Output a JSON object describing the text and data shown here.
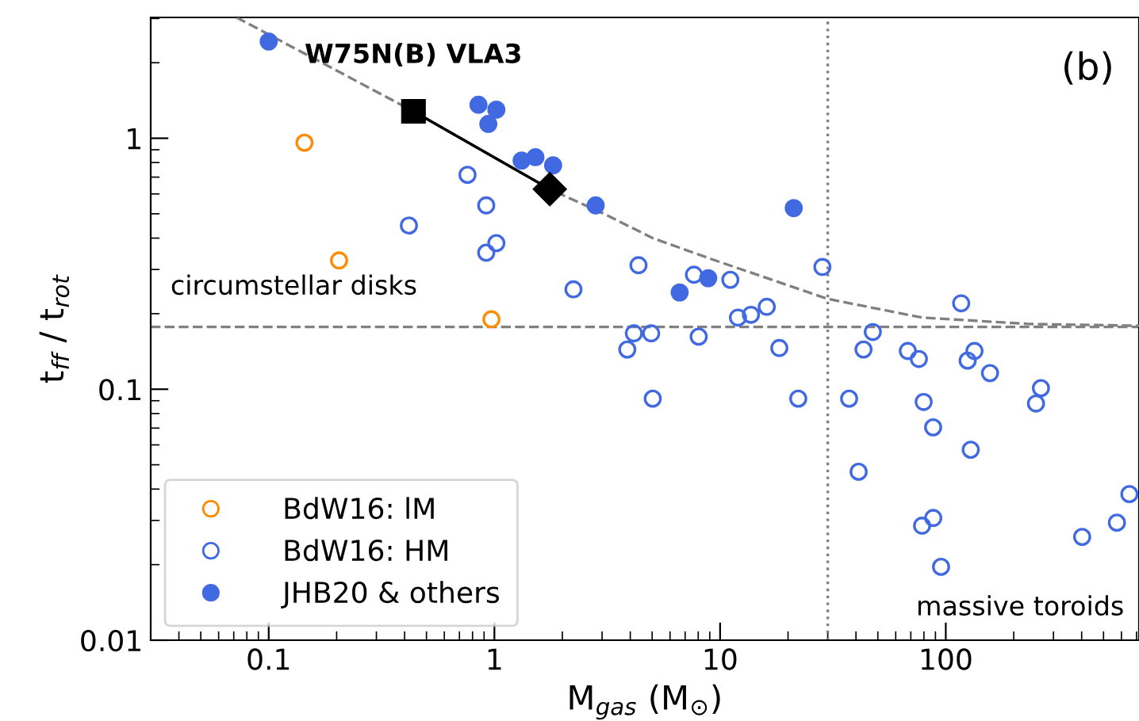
{
  "chart_data": {
    "type": "scatter",
    "xlabel": "M$_{gas}$ (M$_{⊙}$)",
    "ylabel": "t$_{ff}$ / t$_{rot}$",
    "log": "xy",
    "xlim": [
      0.03,
      718
    ],
    "ylim": [
      0.01,
      3.03
    ],
    "xticks": [
      0.1,
      1,
      10,
      100
    ],
    "yticks": [
      0.01,
      0.1,
      1
    ],
    "grid": false,
    "legend": "bottom left",
    "marker": "circle",
    "series": [
      {
        "name": "BdW16: lM",
        "color": "#ff8c00",
        "marker": "circle-open",
        "x": [
          0.144,
          0.205,
          0.97
        ],
        "values": [
          0.96,
          0.326,
          0.19
        ]
      },
      {
        "name": "BdW16: HM",
        "color": "#4169e1",
        "marker": "circle-open",
        "x": [
          0.418,
          0.76,
          0.92,
          0.92,
          1.02,
          2.24,
          4.35,
          4.15,
          3.88,
          7.66,
          11.1,
          28.4,
          117,
          16.1,
          13.7,
          12.0,
          4.95,
          8.04,
          18.3,
          47.5,
          43.2,
          67.9,
          76.0,
          134,
          125,
          157,
          264,
          5.03,
          22.2,
          37.3,
          79.8,
          251,
          87.9,
          129,
          41.1,
          651,
          573,
          402,
          78.5,
          88,
          95.3
        ],
        "values": [
          0.449,
          0.715,
          0.54,
          0.35,
          0.382,
          0.25,
          0.312,
          0.167,
          0.144,
          0.286,
          0.273,
          0.307,
          0.22,
          0.213,
          0.198,
          0.193,
          0.167,
          0.162,
          0.146,
          0.169,
          0.144,
          0.142,
          0.132,
          0.142,
          0.13,
          0.116,
          0.101,
          0.0917,
          0.0917,
          0.0917,
          0.089,
          0.0877,
          0.0705,
          0.0574,
          0.0469,
          0.0382,
          0.0294,
          0.0258,
          0.0286,
          0.0307,
          0.0196
        ]
      },
      {
        "name": "JHB20 & others",
        "color": "#4169e1",
        "x": [
          0.1,
          0.85,
          1.02,
          0.94,
          1.32,
          1.52,
          1.82,
          2.81,
          21.2,
          8.86,
          6.62
        ],
        "values": [
          2.43,
          1.36,
          1.3,
          1.14,
          0.815,
          0.84,
          0.78,
          0.54,
          0.527,
          0.277,
          0.243
        ]
      },
      {
        "type": "line",
        "color": "#808080",
        "line_style": "dashed",
        "marker": "none",
        "x": [
          0.072,
          0.438,
          1.76,
          3.1,
          5.03,
          9.15,
          30,
          78.5,
          232,
          718
        ],
        "values": [
          3.03,
          1.28,
          0.627,
          0.497,
          0.4,
          0.33,
          0.229,
          0.193,
          0.182,
          0.179
        ]
      },
      {
        "type": "line",
        "color": "#000000",
        "line_style": "solid",
        "marker": "none",
        "x": [
          0.438,
          1.76
        ],
        "values": [
          1.28,
          0.627
        ]
      },
      {
        "color": "#000000",
        "marker": "square",
        "x": [
          0.438
        ],
        "values": [
          1.28
        ]
      },
      {
        "color": "#000000",
        "marker": "diamond",
        "x": [
          1.76
        ],
        "values": [
          0.627
        ]
      }
    ],
    "ref_lines": [
      {
        "axis": "y",
        "value": 0.177,
        "color": "#808080",
        "line_style": "dashed"
      },
      {
        "axis": "x",
        "value": 30,
        "color": "#808080",
        "line_style": "dotted"
      }
    ],
    "annotations": [
      {
        "text": "W75N(B) VLA3",
        "x": 0.438,
        "y": 1.28
      },
      "(b)",
      "circumstellar disks",
      "massive toroids"
    ]
  }
}
